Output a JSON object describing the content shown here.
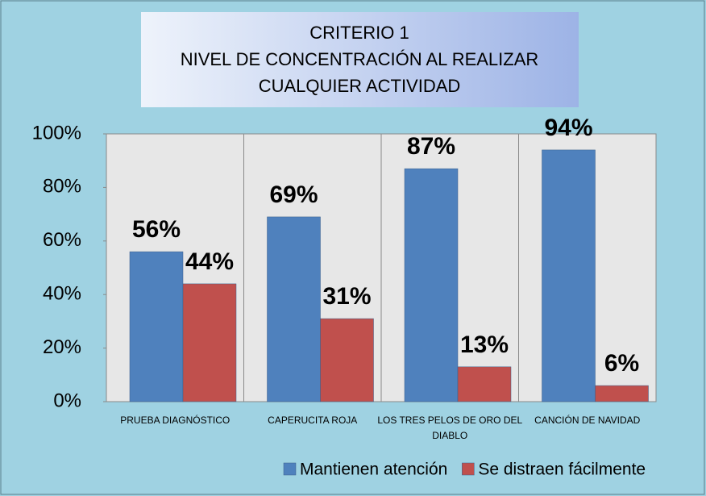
{
  "chart_data": {
    "type": "bar",
    "title": [
      "CRITERIO 1",
      "NIVEL DE CONCENTRACIÓN AL REALIZAR",
      "CUALQUIER ACTIVIDAD"
    ],
    "categories": [
      "PRUEBA DIAGNÓSTICO",
      "CAPERUCITA ROJA",
      "LOS TRES PELOS DE ORO DEL DIABLO",
      "CANCIÓN DE NAVIDAD"
    ],
    "series": [
      {
        "name": "Mantienen atención",
        "color": "#4f81bd",
        "values": [
          56,
          69,
          87,
          94
        ],
        "value_labels": [
          "56%",
          "69%",
          "87%",
          "94%"
        ]
      },
      {
        "name": "Se distraen fácilmente",
        "color": "#c0504d",
        "values": [
          44,
          31,
          13,
          6
        ],
        "value_labels": [
          "44%",
          "31%",
          "13%",
          "6%"
        ]
      }
    ],
    "ylim": [
      0,
      100
    ],
    "yticks": [
      {
        "value": 0,
        "label": "0%"
      },
      {
        "value": 20,
        "label": "20%"
      },
      {
        "value": 40,
        "label": "40%"
      },
      {
        "value": 60,
        "label": "60%"
      },
      {
        "value": 80,
        "label": "80%"
      },
      {
        "value": 100,
        "label": "100%"
      }
    ],
    "legend": "bottom"
  }
}
